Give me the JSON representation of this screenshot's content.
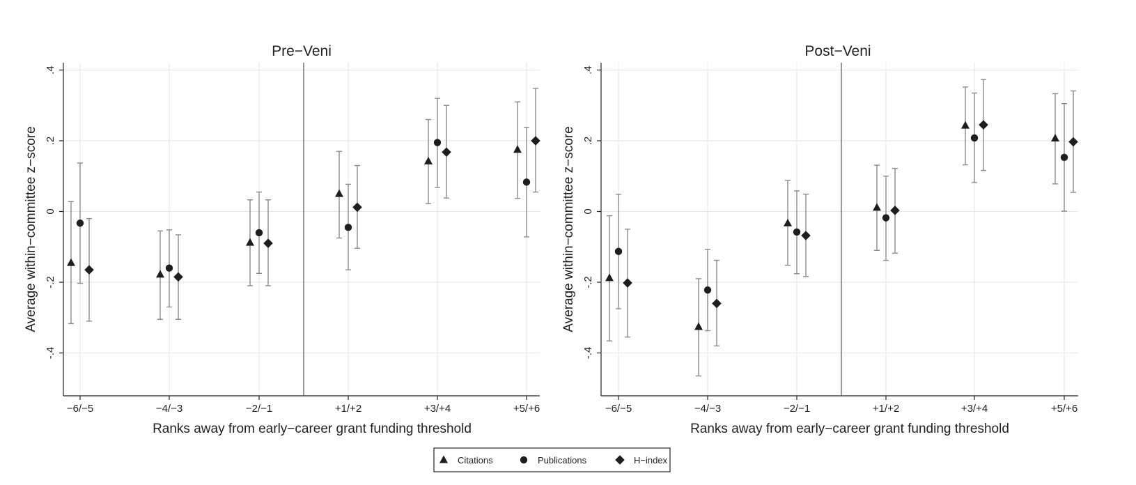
{
  "chart_data": [
    {
      "type": "scatter",
      "title": "Pre−Veni",
      "xlabel": "Ranks away from early−career grant funding threshold",
      "ylabel": "Average within−committee z−score",
      "categories": [
        "−6/−5",
        "−4/−3",
        "−2/−1",
        "+1/+2",
        "+3/+4",
        "+5/+6"
      ],
      "yticks": [
        ".4",
        ".2",
        "0",
        "-.2",
        "-.4"
      ],
      "ylim": [
        -0.52,
        0.42
      ],
      "grid": true,
      "threshold_between": [
        "−2/−1",
        "+1/+2"
      ],
      "series": [
        {
          "name": "Citations",
          "marker": "triangle",
          "values": [
            -0.145,
            -0.178,
            -0.088,
            0.05,
            0.142,
            0.175
          ],
          "lower": [
            -0.317,
            -0.305,
            -0.21,
            -0.075,
            0.022,
            0.037
          ],
          "upper": [
            0.028,
            -0.055,
            0.033,
            0.17,
            0.26,
            0.31
          ]
        },
        {
          "name": "Publications",
          "marker": "circle",
          "values": [
            -0.033,
            -0.16,
            -0.06,
            -0.045,
            0.195,
            0.083
          ],
          "lower": [
            -0.203,
            -0.27,
            -0.175,
            -0.165,
            0.068,
            -0.072
          ],
          "upper": [
            0.137,
            -0.052,
            0.055,
            0.077,
            0.32,
            0.238
          ]
        },
        {
          "name": "H−index",
          "marker": "diamond",
          "values": [
            -0.165,
            -0.185,
            -0.09,
            0.012,
            0.168,
            0.2
          ],
          "lower": [
            -0.31,
            -0.305,
            -0.21,
            -0.104,
            0.038,
            0.055
          ],
          "upper": [
            -0.02,
            -0.066,
            0.033,
            0.13,
            0.3,
            0.348
          ]
        }
      ]
    },
    {
      "type": "scatter",
      "title": "Post−Veni",
      "xlabel": "Ranks away from early−career grant funding threshold",
      "ylabel": "Average within−committee z−score",
      "categories": [
        "−6/−5",
        "−4/−3",
        "−2/−1",
        "+1/+2",
        "+3/+4",
        "+5/+6"
      ],
      "yticks": [
        ".4",
        ".2",
        "0",
        "-.2",
        "-.4"
      ],
      "ylim": [
        -0.52,
        0.42
      ],
      "grid": true,
      "threshold_between": [
        "−2/−1",
        "+1/+2"
      ],
      "series": [
        {
          "name": "Citations",
          "marker": "triangle",
          "values": [
            -0.188,
            -0.326,
            -0.033,
            0.011,
            0.243,
            0.207
          ],
          "lower": [
            -0.366,
            -0.465,
            -0.152,
            -0.11,
            0.132,
            0.078
          ],
          "upper": [
            -0.012,
            -0.19,
            0.088,
            0.131,
            0.352,
            0.333
          ]
        },
        {
          "name": "Publications",
          "marker": "circle",
          "values": [
            -0.113,
            -0.222,
            -0.058,
            -0.018,
            0.208,
            0.153
          ],
          "lower": [
            -0.275,
            -0.337,
            -0.176,
            -0.138,
            0.082,
            0.001
          ],
          "upper": [
            0.049,
            -0.107,
            0.058,
            0.1,
            0.335,
            0.305
          ]
        },
        {
          "name": "H−index",
          "marker": "diamond",
          "values": [
            -0.202,
            -0.26,
            -0.068,
            0.003,
            0.245,
            0.197
          ],
          "lower": [
            -0.355,
            -0.38,
            -0.184,
            -0.118,
            0.116,
            0.054
          ],
          "upper": [
            -0.05,
            -0.138,
            0.049,
            0.122,
            0.373,
            0.341
          ]
        }
      ]
    }
  ],
  "legend": {
    "position": "bottom",
    "items": [
      {
        "label": "Citations",
        "marker": "triangle"
      },
      {
        "label": "Publications",
        "marker": "circle"
      },
      {
        "label": "H−index",
        "marker": "diamond"
      }
    ]
  },
  "colors": {
    "marker": "#1e1e1e",
    "ci": "#8c8c8c",
    "grid": "#e6e6e6"
  }
}
